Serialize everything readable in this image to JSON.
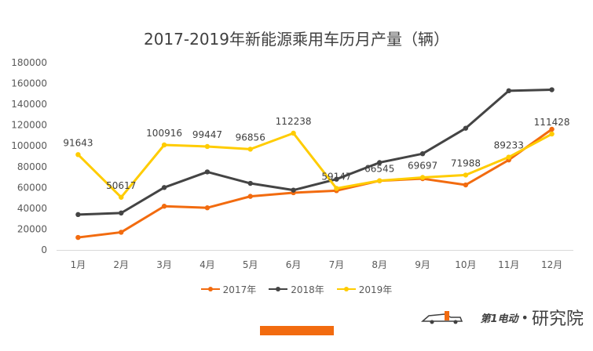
{
  "chart_data": {
    "type": "line",
    "title": "2017-2019年新能源乘用车历月产量（辆）",
    "categories": [
      "1月",
      "2月",
      "3月",
      "4月",
      "5月",
      "6月",
      "7月",
      "8月",
      "9月",
      "10月",
      "11月",
      "12月"
    ],
    "ylim": [
      0,
      180000
    ],
    "yticks": [
      "0",
      "20000",
      "40000",
      "60000",
      "80000",
      "100000",
      "120000",
      "140000",
      "160000",
      "180000"
    ],
    "grid": false,
    "legend_position": "bottom",
    "series": [
      {
        "name": "2017年",
        "color": "#f26b0f",
        "values": [
          12000,
          17000,
          42000,
          40500,
          51500,
          55000,
          57000,
          66500,
          68500,
          62500,
          86500,
          116000
        ]
      },
      {
        "name": "2018年",
        "color": "#444444",
        "values": [
          34000,
          35500,
          60000,
          75000,
          64000,
          57500,
          68000,
          84000,
          92500,
          117000,
          153000,
          154000
        ]
      },
      {
        "name": "2019年",
        "color": "#ffcc00",
        "values": [
          91643,
          50617,
          100916,
          99447,
          96856,
          112238,
          59147,
          66545,
          69697,
          71988,
          89233,
          111428
        ],
        "labels": [
          "91643",
          "50617",
          "100916",
          "99447",
          "96856",
          "112238",
          "59147",
          "66545",
          "69697",
          "71988",
          "89233",
          "111428"
        ]
      }
    ]
  },
  "watermark": {
    "brand_text": "第1电动",
    "separator": "•",
    "suffix": "研究院"
  }
}
